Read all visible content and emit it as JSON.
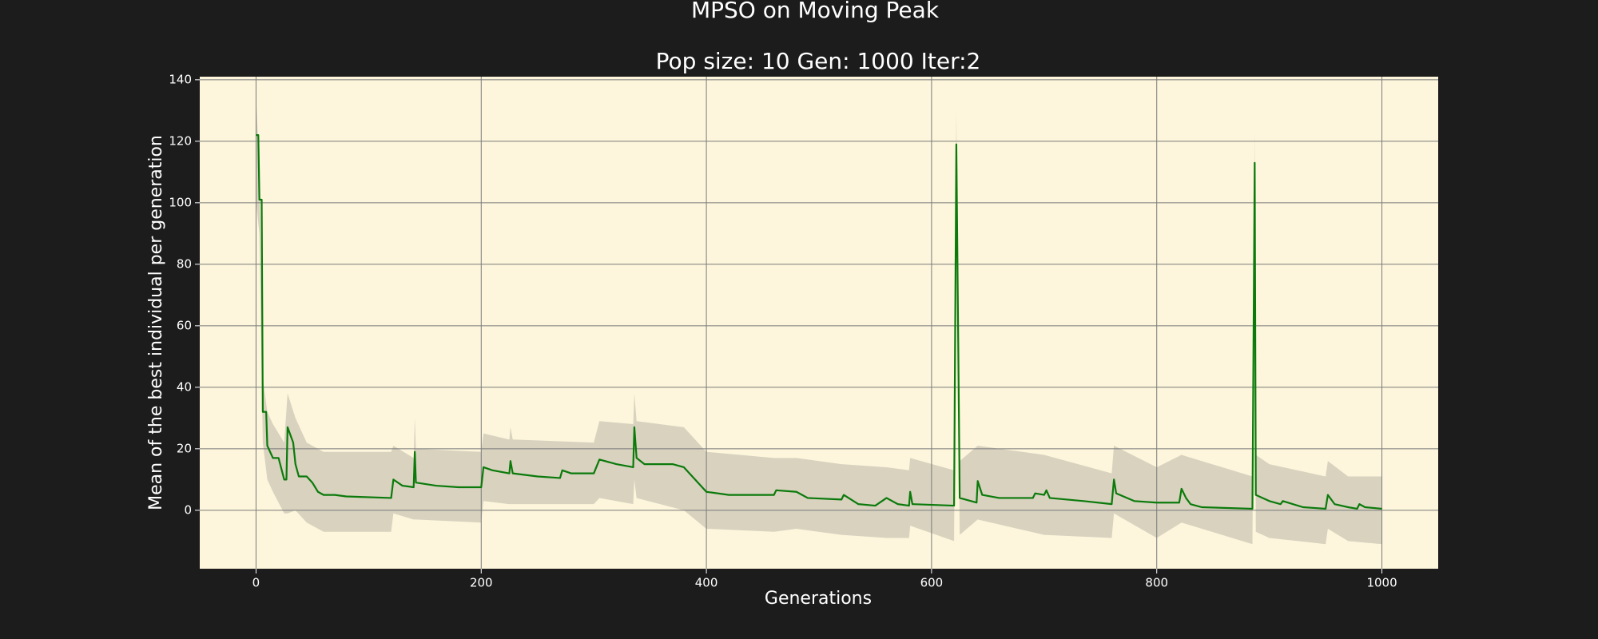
{
  "chart_data": {
    "type": "line",
    "title": "MPSO on Moving Peak",
    "subtitle": "Pop size: 10  Gen: 1000  Iter:2",
    "xlabel": "Generations",
    "ylabel": "Mean of the best individual per generation",
    "xlim": [
      -50,
      1050
    ],
    "ylim": [
      -19,
      141
    ],
    "xticks": [
      0,
      200,
      400,
      600,
      800,
      1000
    ],
    "yticks": [
      0,
      20,
      40,
      60,
      80,
      100,
      120,
      140
    ],
    "grid": true,
    "color": "#0b7a0b",
    "x": [
      0,
      2,
      3,
      5,
      6,
      9,
      10,
      15,
      20,
      25,
      27,
      28,
      33,
      35,
      38,
      45,
      50,
      55,
      60,
      70,
      80,
      120,
      122,
      130,
      140,
      141,
      142,
      160,
      180,
      200,
      202,
      210,
      225,
      226,
      228,
      250,
      270,
      272,
      280,
      300,
      305,
      320,
      335,
      336,
      338,
      345,
      370,
      380,
      390,
      400,
      420,
      460,
      462,
      480,
      490,
      520,
      522,
      535,
      550,
      560,
      570,
      580,
      581,
      583,
      620,
      622,
      625,
      640,
      641,
      645,
      660,
      690,
      692,
      700,
      702,
      705,
      735,
      760,
      762,
      764,
      780,
      800,
      820,
      822,
      826,
      830,
      840,
      885,
      887,
      888,
      900,
      910,
      912,
      930,
      950,
      952,
      958,
      970,
      978,
      980,
      985,
      1000
    ],
    "values": [
      122,
      122,
      101,
      101,
      32,
      32,
      21,
      17,
      17,
      10,
      10,
      27,
      22,
      15,
      11,
      11,
      9,
      6,
      5,
      5,
      4.5,
      4,
      10,
      8,
      7.5,
      19,
      9,
      8,
      7.5,
      7.5,
      14,
      13,
      12,
      16,
      12,
      11,
      10.5,
      13,
      12,
      12,
      16.5,
      15,
      14,
      27,
      17,
      15,
      15,
      14,
      10,
      6,
      5,
      5,
      6.5,
      6,
      4,
      3.5,
      5,
      2,
      1.5,
      4,
      2,
      1.5,
      6,
      2,
      1.5,
      119,
      4,
      2.5,
      9.5,
      5,
      4,
      4,
      5.5,
      5,
      6.5,
      4,
      3,
      2,
      10,
      5.5,
      3,
      2.5,
      2.5,
      7,
      4,
      2,
      1,
      0.5,
      113,
      5,
      3,
      2,
      3,
      1,
      0.5,
      5,
      2,
      1,
      0.5,
      2,
      1,
      0.5
    ],
    "band": {
      "color": "#d8d2bf",
      "x": [
        0,
        3,
        6,
        10,
        15,
        25,
        28,
        35,
        45,
        60,
        120,
        122,
        140,
        141,
        142,
        200,
        202,
        225,
        226,
        228,
        300,
        305,
        335,
        336,
        338,
        380,
        400,
        460,
        480,
        520,
        560,
        580,
        581,
        620,
        622,
        625,
        641,
        700,
        760,
        762,
        800,
        822,
        885,
        887,
        888,
        900,
        950,
        952,
        970,
        1000
      ],
      "upper": [
        134,
        113,
        43,
        32,
        28,
        22,
        38,
        30,
        22,
        19,
        19,
        21,
        17,
        30,
        20,
        19,
        25,
        23,
        27,
        23,
        22,
        29,
        28,
        38,
        29,
        27,
        19,
        17,
        17,
        15,
        14,
        13,
        17,
        13,
        130,
        16,
        21,
        18,
        12,
        21,
        14,
        18,
        11,
        124,
        18,
        15,
        11,
        16,
        11,
        11
      ],
      "lower": [
        100,
        90,
        22,
        10,
        6,
        -1,
        -1,
        0,
        -4,
        -7,
        -7,
        -1,
        -3,
        -3,
        -3,
        -4,
        3,
        2,
        2,
        2,
        2,
        4,
        2,
        10,
        4,
        0,
        -6,
        -7,
        -6,
        -8,
        -9,
        -9,
        -5,
        -10,
        108,
        -8,
        -3,
        -8,
        -9,
        -1,
        -9,
        -4,
        -11,
        102,
        -7,
        -9,
        -11,
        -6,
        -10,
        -11
      ]
    }
  }
}
